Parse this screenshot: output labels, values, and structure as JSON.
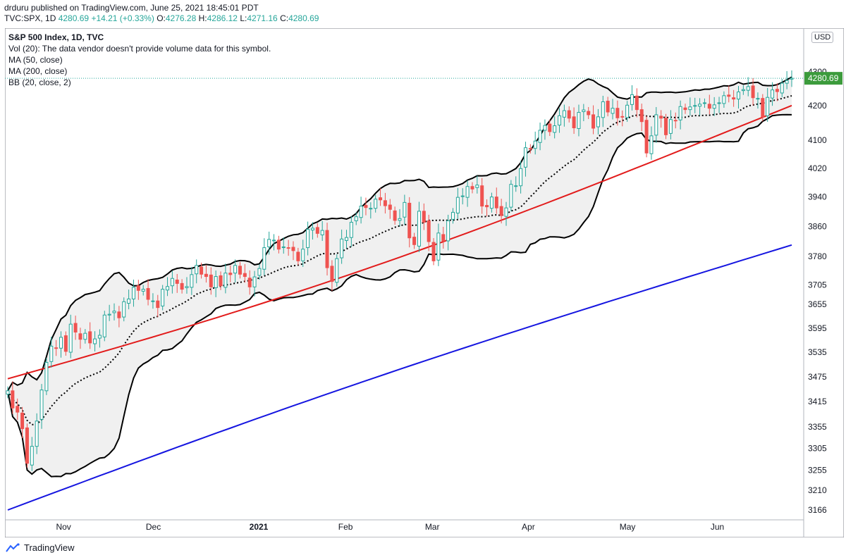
{
  "header": {
    "publisher_line": "drduru published on TradingView.com, June 25, 2021 18:45:01 PDT",
    "symbol": "TVC:SPX, 1D",
    "last": "4280.69",
    "change": "+14.21 (+0.33%)",
    "o_label": "O:",
    "o_value": "4276.28",
    "h_label": "H:",
    "h_value": "4286.12",
    "l_label": "L:",
    "l_value": "4271.16",
    "c_label": "C:",
    "c_value": "4280.69"
  },
  "legend": {
    "title": "S&P 500 Index, 1D, TVC",
    "vol": "Vol (20): The data vendor doesn't provide volume data for this symbol.",
    "ma50": "MA (50, close)",
    "ma200": "MA (200, close)",
    "bb": "BB (20, close, 2)"
  },
  "currency_label": "USD",
  "price_tag": "4280.69",
  "footer": {
    "brand": "TradingView"
  },
  "colors": {
    "up": "#26a69a",
    "down": "#ef5350",
    "ma50": "#e21b1b",
    "ma200": "#1515e0",
    "bb_band": "#000000",
    "bb_fill": "#f0f0f0",
    "price_tag_bg": "#3c9b3c"
  },
  "chart_data": {
    "type": "candlestick",
    "y_ticks": [
      3166,
      3210,
      3255,
      3305,
      3355,
      3415,
      3475,
      3535,
      3595,
      3655,
      3705,
      3780,
      3860,
      3940,
      4020,
      4100,
      4200,
      4300
    ],
    "y_scale": "log",
    "x_ticks": [
      {
        "label": "Nov",
        "date": "2020-11-02"
      },
      {
        "label": "Dec",
        "date": "2020-12-01"
      },
      {
        "label": "2021",
        "date": "2021-01-04"
      },
      {
        "label": "Feb",
        "date": "2021-02-01"
      },
      {
        "label": "Mar",
        "date": "2021-03-01"
      },
      {
        "label": "Apr",
        "date": "2021-04-01"
      },
      {
        "label": "May",
        "date": "2021-05-03"
      },
      {
        "label": "Jun",
        "date": "2021-06-01"
      }
    ],
    "last_price": 4280.69,
    "last_ohlc": {
      "open": 4276.28,
      "high": 4286.12,
      "low": 4271.16,
      "close": 4280.69
    },
    "series": [
      {
        "name": "S&P 500 Index",
        "kind": "candles",
        "closes": [
          3441,
          3400,
          3390,
          3351,
          3271,
          3310,
          3369,
          3443,
          3510,
          3550,
          3545,
          3572,
          3537,
          3605,
          3585,
          3567,
          3582,
          3558,
          3568,
          3577,
          3628,
          3630,
          3638,
          3621,
          3662,
          3669,
          3699,
          3691,
          3694,
          3668,
          3664,
          3647,
          3694,
          3701,
          3722,
          3709,
          3694,
          3701,
          3732,
          3756,
          3733,
          3727,
          3700,
          3727,
          3703,
          3736,
          3732,
          3756,
          3733,
          3727,
          3700,
          3726,
          3748,
          3803,
          3825,
          3823,
          3799,
          3805,
          3802,
          3795,
          3768,
          3799,
          3852,
          3855,
          3841,
          3849,
          3750,
          3714,
          3774,
          3826,
          3830,
          3871,
          3886,
          3915,
          3911,
          3909,
          3934,
          3932,
          3916,
          3906,
          3876,
          3881,
          3925,
          3829,
          3811,
          3901,
          3871,
          3819,
          3768,
          3842,
          3821,
          3875,
          3898,
          3939,
          3943,
          3969,
          3962,
          3973,
          3915,
          3913,
          3940,
          3910,
          3889,
          3910,
          3975,
          3971,
          4019,
          4078,
          4074,
          4097,
          4128,
          4142,
          4124,
          4141,
          4170,
          4185,
          4163,
          4135,
          4180,
          4187,
          4173,
          4134,
          4167,
          4211,
          4181,
          4192,
          4164,
          4167,
          4201,
          4232,
          4188,
          4153,
          4063,
          4112,
          4173,
          4163,
          4115,
          4159,
          4156,
          4197,
          4188,
          4196,
          4200,
          4204,
          4208,
          4192,
          4202,
          4208,
          4229,
          4227,
          4219,
          4240,
          4247,
          4256,
          4223,
          4221,
          4166,
          4224,
          4246,
          4241,
          4266,
          4274,
          4281
        ]
      },
      {
        "name": "MA (50, close)",
        "start": 3470,
        "end": 4200
      },
      {
        "name": "MA (200, close)",
        "start": 3166,
        "end": 3810
      },
      {
        "name": "BB (20, close, 2)",
        "kind": "bands"
      }
    ]
  }
}
